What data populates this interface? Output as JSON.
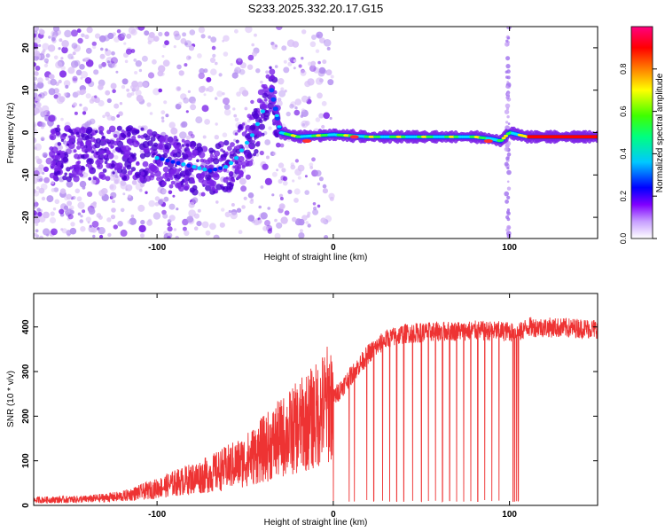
{
  "title": "S233.2025.332.20.17.G15",
  "chart_data": [
    {
      "type": "heatmap",
      "title": "S233.2025.332.20.17.G15",
      "xlabel": "Height of straight line (km)",
      "ylabel": "Frequency (Hz)",
      "xlim": [
        -170,
        150
      ],
      "ylim": [
        -25,
        25
      ],
      "xticks": [
        -100,
        0,
        100
      ],
      "yticks": [
        -20,
        -10,
        0,
        10,
        20
      ],
      "colorbar": {
        "label": "Normalized spectral amplitude",
        "range": [
          0.0,
          1.0
        ],
        "ticks": [
          0.0,
          0.2,
          0.4,
          0.6,
          0.8
        ],
        "tick_labels": [
          "0.0",
          "0.2",
          "0.4",
          "0.6",
          "0.8"
        ],
        "colors": [
          "#ffffff",
          "#8000ff",
          "#0000ff",
          "#00ffff",
          "#00ff00",
          "#ffff00",
          "#ff8000",
          "#ff0000",
          "#ff0080"
        ]
      },
      "ridge": {
        "x": [
          -110,
          -100,
          -90,
          -80,
          -70,
          -60,
          -55,
          -50,
          -45,
          -40,
          -37,
          -35,
          -30,
          -20,
          0,
          20,
          40,
          60,
          80,
          90,
          95,
          100,
          110,
          150
        ],
        "y": [
          -5,
          -6,
          -7,
          -8,
          -9,
          -8,
          -6,
          -3,
          0,
          5,
          9,
          10,
          0,
          -1,
          -0.5,
          -1,
          -1,
          -1,
          -1,
          -1.5,
          -2,
          0,
          -1,
          -1
        ]
      },
      "spike_x": 99
    },
    {
      "type": "line",
      "title": "",
      "xlabel": "Height of straight line (km)",
      "ylabel": "SNR (10 * v/v)",
      "xlim": [
        -170,
        150
      ],
      "ylim": [
        0,
        475
      ],
      "xticks": [
        -100,
        0,
        100
      ],
      "yticks": [
        0,
        100,
        200,
        300,
        400
      ],
      "color": "#ee3333",
      "envelope": {
        "x": [
          -170,
          -140,
          -120,
          -100,
          -90,
          -80,
          -70,
          -60,
          -50,
          -40,
          -30,
          -20,
          -10,
          0,
          10,
          20,
          30,
          40,
          60,
          80,
          100,
          105,
          110,
          130,
          150
        ],
        "y": [
          12,
          14,
          20,
          38,
          50,
          60,
          70,
          85,
          100,
          125,
          150,
          175,
          200,
          240,
          290,
          340,
          372,
          385,
          390,
          392,
          390,
          385,
          400,
          398,
          396
        ]
      },
      "dropouts_x": [
        0,
        9,
        12,
        19,
        23,
        28,
        32,
        36,
        40,
        45,
        50,
        54,
        58,
        62,
        66,
        70,
        74,
        78,
        82,
        86,
        90,
        94,
        102,
        103,
        104,
        105
      ]
    }
  ]
}
